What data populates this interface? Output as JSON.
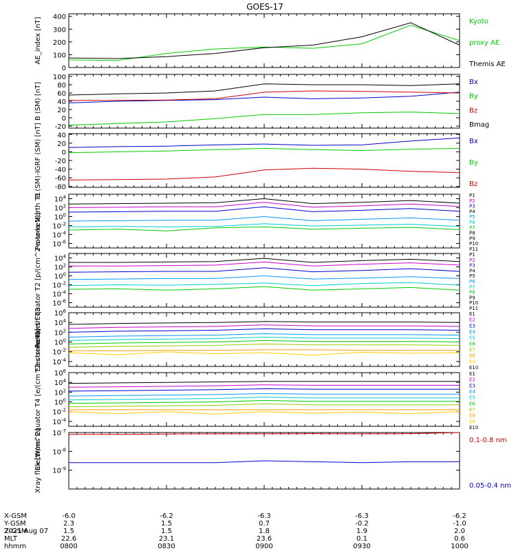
{
  "title": "GOES-17",
  "date_label": "2021 Aug 07",
  "footer": {
    "row_labels": [
      "X-GSM",
      "Y-GSM",
      "Z-GSM",
      "MLT",
      "hhmm"
    ],
    "columns": [
      {
        "values": [
          "-6.0",
          "2.3",
          "1.5",
          "22.6",
          "0800"
        ]
      },
      {
        "values": [
          "-6.2",
          "1.5",
          "1.5",
          "23.1",
          "0830"
        ]
      },
      {
        "values": [
          "-6.3",
          "0.7",
          "1.8",
          "23.6",
          "0900"
        ]
      },
      {
        "values": [
          "-6.3",
          "-0.2",
          "1.9",
          "0.1",
          "0930"
        ]
      },
      {
        "values": [
          "-6.2",
          "-1.0",
          "2.0",
          "0.6",
          "1000"
        ]
      }
    ]
  },
  "colors": {
    "black": "#000000",
    "green": "#00cc00",
    "blue": "#0000cc",
    "red": "#cc0000"
  },
  "chart_data": [
    {
      "type": "line",
      "ylabel": "AE_index [nT]",
      "ylim": [
        0,
        420
      ],
      "yticks": [
        "400",
        "300",
        "200",
        "100",
        "0"
      ],
      "x": [
        "0800",
        "0815",
        "0830",
        "0845",
        "0900",
        "0915",
        "0930",
        "0945",
        "1000"
      ],
      "series": [
        {
          "name": "Kyoto proxy AE",
          "color": "#00cc00",
          "values": [
            60,
            55,
            110,
            145,
            160,
            150,
            185,
            330,
            210
          ]
        },
        {
          "name": "Themis AE",
          "color": "#000000",
          "values": [
            75,
            70,
            85,
            110,
            155,
            175,
            240,
            350,
            175
          ]
        }
      ],
      "legend_labels": [
        "Kyoto",
        "proxy AE",
        "Themis AE"
      ]
    },
    {
      "type": "line",
      "ylabel": "B (SM) [nT]",
      "ylim": [
        -25,
        105
      ],
      "yticks": [
        "100",
        "80",
        "60",
        "40",
        "20",
        "0",
        "-20"
      ],
      "x": [
        "0800",
        "0815",
        "0830",
        "0845",
        "0900",
        "0915",
        "0930",
        "0945",
        "1000"
      ],
      "series": [
        {
          "name": "Bx",
          "color": "#0000cc",
          "values": [
            36,
            40,
            42,
            44,
            50,
            46,
            48,
            52,
            62
          ]
        },
        {
          "name": "By",
          "color": "#00cc00",
          "values": [
            -18,
            -14,
            -10,
            -2,
            8,
            8,
            12,
            14,
            10
          ]
        },
        {
          "name": "Bz",
          "color": "#cc0000",
          "values": [
            42,
            42,
            43,
            46,
            62,
            65,
            64,
            62,
            60
          ]
        },
        {
          "name": "Bmag",
          "color": "#000000",
          "values": [
            55,
            58,
            60,
            65,
            82,
            80,
            80,
            78,
            82
          ]
        }
      ]
    },
    {
      "type": "line",
      "ylabel": "B (SM)-IGRF (SM) [nT]",
      "ylim": [
        -82,
        42
      ],
      "yticks": [
        "40",
        "20",
        "0",
        "-20",
        "-40",
        "-60",
        "-80"
      ],
      "x": [
        "0800",
        "0815",
        "0830",
        "0845",
        "0900",
        "0915",
        "0930",
        "0945",
        "1000"
      ],
      "series": [
        {
          "name": "Bx",
          "color": "#0000cc",
          "values": [
            10,
            12,
            13,
            16,
            18,
            15,
            16,
            25,
            32
          ]
        },
        {
          "name": "By",
          "color": "#00cc00",
          "values": [
            -2,
            0,
            2,
            5,
            8,
            5,
            3,
            6,
            8
          ]
        },
        {
          "name": "Bz",
          "color": "#cc0000",
          "values": [
            -65,
            -64,
            -63,
            -58,
            -42,
            -38,
            -40,
            -45,
            -48
          ]
        }
      ]
    },
    {
      "type": "line",
      "ylabel": "Protons North T1",
      "log_scale": true,
      "ylim_exp": [
        -7,
        5
      ],
      "yticks": [
        "10^4",
        "10^2",
        "10^0",
        "10^-2",
        "10^-4",
        "10^-6"
      ],
      "x": [
        "0800",
        "0815",
        "0830",
        "0845",
        "0900",
        "0915",
        "0930",
        "0945",
        "1000"
      ],
      "series": [
        {
          "name": "P1",
          "color": "#000000",
          "log_values": [
            2.8,
            2.9,
            3.0,
            3.1,
            4.0,
            2.9,
            3.2,
            3.6,
            3.0
          ]
        },
        {
          "name": "P2",
          "color": "#cc00cc",
          "log_values": [
            2.0,
            2.1,
            2.2,
            2.2,
            3.2,
            2.1,
            2.4,
            2.8,
            2.3
          ]
        },
        {
          "name": "P3",
          "color": "#0000cc",
          "log_values": [
            1.0,
            1.1,
            1.2,
            1.2,
            2.2,
            1.1,
            1.4,
            1.8,
            1.2
          ]
        },
        {
          "name": "P5",
          "color": "#0099ff",
          "log_values": [
            -1.0,
            -0.9,
            -0.8,
            -0.8,
            0.0,
            -0.9,
            -0.6,
            -0.3,
            -0.8
          ]
        },
        {
          "name": "P6",
          "color": "#00cccc",
          "log_values": [
            -2.3,
            -2.2,
            -2.3,
            -2.2,
            -1.6,
            -2.1,
            -1.9,
            -1.7,
            -2.2
          ]
        },
        {
          "name": "P7",
          "color": "#00cc00",
          "log_values": [
            -3.0,
            -2.8,
            -3.2,
            -2.5,
            -2.3,
            -2.8,
            -2.6,
            -2.4,
            -2.9
          ]
        }
      ],
      "legend_labels": [
        "P1",
        "P2",
        "P3",
        "P4",
        "P5",
        "P6",
        "P7",
        "P8",
        "P9",
        "P10",
        "P11"
      ]
    },
    {
      "type": "line",
      "ylabel": "Protons Equator T2 [p/(cm^2-s-sr-keV)]",
      "log_scale": true,
      "ylim_exp": [
        -7,
        5
      ],
      "yticks": [
        "10^4",
        "10^2",
        "10^0",
        "10^-2",
        "10^-4",
        "10^-6"
      ],
      "x": [
        "0800",
        "0815",
        "0830",
        "0845",
        "0900",
        "0915",
        "0930",
        "0945",
        "1000"
      ],
      "series": [
        {
          "name": "P1",
          "color": "#000000",
          "log_values": [
            3.0,
            3.0,
            3.1,
            3.2,
            3.9,
            3.0,
            3.4,
            3.7,
            3.2
          ]
        },
        {
          "name": "P2",
          "color": "#cc00cc",
          "log_values": [
            2.2,
            2.2,
            2.3,
            2.4,
            3.1,
            2.2,
            2.6,
            2.9,
            2.4
          ]
        },
        {
          "name": "P3",
          "color": "#0000cc",
          "log_values": [
            0.8,
            0.9,
            1.0,
            1.0,
            1.8,
            0.9,
            1.2,
            1.6,
            1.0
          ]
        },
        {
          "name": "P6",
          "color": "#0099ff",
          "log_values": [
            -0.8,
            -0.7,
            -0.6,
            -0.6,
            0.0,
            -0.7,
            -0.5,
            -0.2,
            -0.6
          ]
        },
        {
          "name": "P7",
          "color": "#00cccc",
          "log_values": [
            -2.2,
            -2.0,
            -2.1,
            -1.9,
            -1.6,
            -2.2,
            -1.7,
            -1.5,
            -2.1
          ]
        },
        {
          "name": "P8",
          "color": "#00cc00",
          "log_values": [
            -3.0,
            -2.9,
            -3.2,
            -2.9,
            -2.4,
            -3.2,
            -2.9,
            -2.6,
            -3.2
          ]
        }
      ],
      "legend_labels": [
        "P1",
        "P2",
        "P3",
        "P4",
        "P5",
        "P6",
        "P7",
        "P8",
        "P9",
        "P10",
        "P11"
      ]
    },
    {
      "type": "line",
      "ylabel": "Electrons North T3",
      "log_scale": true,
      "ylim_exp": [
        -5,
        6
      ],
      "yticks": [
        "10^6",
        "10^4",
        "10^2",
        "10^0",
        "10^-2",
        "10^-4"
      ],
      "x": [
        "0800",
        "0815",
        "0830",
        "0845",
        "0900",
        "0915",
        "0930",
        "0945",
        "1000"
      ],
      "series": [
        {
          "name": "E1",
          "color": "#000000",
          "log_values": [
            3.6,
            3.8,
            3.9,
            4.0,
            4.2,
            4.1,
            4.1,
            4.1,
            4.0
          ]
        },
        {
          "name": "E2",
          "color": "#cc00cc",
          "log_values": [
            2.8,
            3.0,
            3.1,
            3.2,
            3.5,
            3.3,
            3.3,
            3.3,
            3.2
          ]
        },
        {
          "name": "E3",
          "color": "#0000cc",
          "log_values": [
            2.0,
            2.2,
            2.3,
            2.4,
            2.7,
            2.5,
            2.5,
            2.5,
            2.4
          ]
        },
        {
          "name": "E4",
          "color": "#0099ff",
          "log_values": [
            1.0,
            1.2,
            1.3,
            1.4,
            1.7,
            1.5,
            1.5,
            1.5,
            1.4
          ]
        },
        {
          "name": "E5",
          "color": "#00cccc",
          "log_values": [
            0.3,
            0.5,
            0.6,
            0.7,
            1.0,
            0.8,
            0.8,
            0.8,
            0.7
          ]
        },
        {
          "name": "E6",
          "color": "#00cc00",
          "log_values": [
            -0.4,
            -0.2,
            -0.1,
            0.0,
            0.3,
            0.1,
            0.1,
            0.1,
            0.0
          ]
        },
        {
          "name": "E7",
          "color": "#99cc00",
          "log_values": [
            -1.1,
            -0.9,
            -0.8,
            -0.7,
            -0.4,
            -0.6,
            -0.6,
            -0.6,
            -0.7
          ]
        },
        {
          "name": "E8",
          "color": "#ff9900",
          "log_values": [
            -1.8,
            -1.8,
            -1.7,
            -1.7,
            -1.6,
            -1.6,
            -1.7,
            -1.7,
            -1.7
          ]
        },
        {
          "name": "E9",
          "color": "#ffcc00",
          "log_values": [
            -2.2,
            -2.6,
            -2.0,
            -2.4,
            -2.2,
            -2.7,
            -2.1,
            -2.3,
            -2.2
          ]
        }
      ],
      "legend_labels": [
        "E1",
        "E2",
        "E3",
        "E4",
        "E5",
        "E6",
        "E7",
        "E8",
        "E9",
        "E10"
      ]
    },
    {
      "type": "line",
      "ylabel": "Electrons Equator T4 [e/(cm^2-s-sr-keV)]",
      "log_scale": true,
      "ylim_exp": [
        -5,
        6
      ],
      "yticks": [
        "10^6",
        "10^4",
        "10^2",
        "10^0",
        "10^-2",
        "10^-4"
      ],
      "x": [
        "0800",
        "0815",
        "0830",
        "0845",
        "0900",
        "0915",
        "0930",
        "0945",
        "1000"
      ],
      "series": [
        {
          "name": "E1",
          "color": "#000000",
          "log_values": [
            3.8,
            3.9,
            4.0,
            4.1,
            4.2,
            4.2,
            4.2,
            4.2,
            4.2
          ]
        },
        {
          "name": "E2",
          "color": "#cc00cc",
          "log_values": [
            3.0,
            3.1,
            3.2,
            3.3,
            3.5,
            3.4,
            3.4,
            3.4,
            3.4
          ]
        },
        {
          "name": "E3",
          "color": "#0000cc",
          "log_values": [
            2.2,
            2.3,
            2.4,
            2.5,
            2.7,
            2.6,
            2.6,
            2.6,
            2.6
          ]
        },
        {
          "name": "E4",
          "color": "#0099ff",
          "log_values": [
            1.2,
            1.3,
            1.4,
            1.5,
            1.7,
            1.6,
            1.6,
            1.6,
            1.6
          ]
        },
        {
          "name": "E5",
          "color": "#00cccc",
          "log_values": [
            0.4,
            0.5,
            0.6,
            0.7,
            1.0,
            0.8,
            0.8,
            0.8,
            0.8
          ]
        },
        {
          "name": "E6",
          "color": "#00cc00",
          "log_values": [
            -0.3,
            -0.2,
            -0.1,
            0.0,
            0.3,
            0.1,
            0.1,
            0.1,
            0.1
          ]
        },
        {
          "name": "E7",
          "color": "#99cc00",
          "log_values": [
            -1.0,
            -0.9,
            -0.8,
            -0.7,
            -0.4,
            -0.6,
            -0.6,
            -0.6,
            -0.6
          ]
        },
        {
          "name": "E8",
          "color": "#ff9900",
          "log_values": [
            -1.6,
            -1.6,
            -1.6,
            -1.6,
            -1.6,
            -1.6,
            -1.6,
            -1.6,
            -1.6
          ]
        },
        {
          "name": "E9",
          "color": "#ffcc00",
          "log_values": [
            -2.0,
            -2.4,
            -2.0,
            -2.5,
            -2.0,
            -2.3,
            -2.1,
            -2.4,
            -2.0
          ]
        }
      ],
      "legend_labels": [
        "E1",
        "E2",
        "E3",
        "E4",
        "E5",
        "E6",
        "E7",
        "E8",
        "E9",
        "E10"
      ]
    },
    {
      "type": "line",
      "ylabel": "Xray flux [W/m^2]",
      "log_scale": true,
      "ylim_exp": [
        -10,
        -7
      ],
      "yticks": [
        "10^-7",
        "10^-8",
        "10^-9"
      ],
      "x": [
        "0800",
        "0815",
        "0830",
        "0845",
        "0900",
        "0915",
        "0930",
        "0945",
        "1000"
      ],
      "series": [
        {
          "name": "0.1-0.8 nm",
          "color": "#cc0000",
          "log_values": [
            -7.1,
            -7.1,
            -7.08,
            -7.07,
            -7.07,
            -7.06,
            -7.07,
            -7.06,
            -7.0
          ]
        },
        {
          "name": "0.05-0.4 nm",
          "color": "#0000cc",
          "log_values": [
            -8.6,
            -8.6,
            -8.6,
            -8.6,
            -8.5,
            -8.55,
            -8.6,
            -8.55,
            -8.55
          ]
        }
      ],
      "legend_labels": [
        "0.1-0.8 nm",
        "0.05-0.4 nm"
      ]
    }
  ]
}
